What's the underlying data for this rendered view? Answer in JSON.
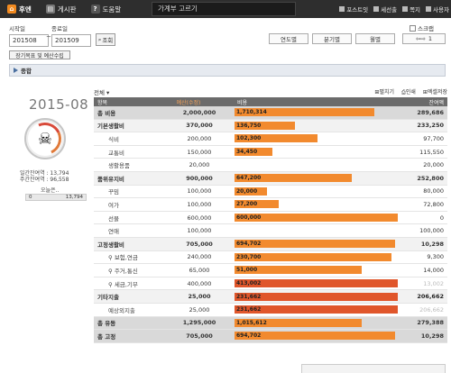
{
  "topnav": [
    {
      "label": "후엔",
      "icon": "home-icon"
    },
    {
      "label": "게시판",
      "icon": "board-icon"
    },
    {
      "label": "도움말",
      "icon": "help-icon"
    }
  ],
  "page_title": "가계부 고르기",
  "topright": {
    "post": "포스트잇",
    "receipt": "세선출",
    "note": "쪽지",
    "user": "사용자"
  },
  "filters": {
    "start_label": "시작일",
    "end_label": "종료일",
    "start_value": "201508",
    "end_value": "201509",
    "tilde": "~",
    "search_label": "조회",
    "checkbox_label": "스크랩",
    "periods": [
      "연도별",
      "분기별",
      "월별"
    ],
    "pager_label": "1",
    "goal_button": "장기목표 및 예산수립"
  },
  "section_title": "종합",
  "left": {
    "month": "2015-08",
    "daily_avg": "일간잔여역 : 13,794",
    "weekly_avg": "주간잔여역 : 96,558",
    "today_label": "오늘은..",
    "today_left": "0",
    "today_right": "13,794"
  },
  "table": {
    "filter_label": "전체",
    "tools": [
      "펼치기",
      "인쇄",
      "엑셀저장"
    ],
    "headers": {
      "item": "항목",
      "budget": "예산(수정)",
      "spent": "비용",
      "remain": "잔여액"
    },
    "rows": [
      {
        "label": "총 비용",
        "budget": "2,000,000",
        "spent": "1,710,314",
        "pct": 85.5,
        "remain": "289,686",
        "kind": "total"
      },
      {
        "label": "기본생활비",
        "budget": "370,000",
        "spent": "136,750",
        "pct": 37,
        "remain": "233,250",
        "kind": "group"
      },
      {
        "label": "식비",
        "budget": "200,000",
        "spent": "102,300",
        "pct": 51,
        "remain": "97,700",
        "kind": "sub"
      },
      {
        "label": "교통비",
        "budget": "150,000",
        "spent": "34,450",
        "pct": 23,
        "remain": "115,550",
        "kind": "sub"
      },
      {
        "label": "생활용품",
        "budget": "20,000",
        "spent": "",
        "pct": 0,
        "remain": "20,000",
        "kind": "sub"
      },
      {
        "label": "품위유지비",
        "budget": "900,000",
        "spent": "647,200",
        "pct": 72,
        "remain": "252,800",
        "kind": "group"
      },
      {
        "label": "꾸밈",
        "budget": "100,000",
        "spent": "20,000",
        "pct": 20,
        "remain": "80,000",
        "kind": "sub"
      },
      {
        "label": "여가",
        "budget": "100,000",
        "spent": "27,200",
        "pct": 27,
        "remain": "72,800",
        "kind": "sub"
      },
      {
        "label": "선물",
        "budget": "600,000",
        "spent": "600,000",
        "pct": 100,
        "remain": "0",
        "kind": "sub"
      },
      {
        "label": "연애",
        "budget": "100,000",
        "spent": "",
        "pct": 0,
        "remain": "100,000",
        "kind": "sub"
      },
      {
        "label": "고정생활비",
        "budget": "705,000",
        "spent": "694,702",
        "pct": 98.5,
        "remain": "10,298",
        "kind": "group"
      },
      {
        "label": "보험,연금",
        "budget": "240,000",
        "spent": "230,700",
        "pct": 96,
        "remain": "9,300",
        "kind": "sub",
        "pin": true
      },
      {
        "label": "주거,통신",
        "budget": "65,000",
        "spent": "51,000",
        "pct": 78,
        "remain": "14,000",
        "kind": "sub",
        "pin": true
      },
      {
        "label": "세금,기부",
        "budget": "400,000",
        "spent": "413,002",
        "pct": 100,
        "remain": "13,002",
        "kind": "sub",
        "pin": true,
        "over": true
      },
      {
        "label": "기타지출",
        "budget": "25,000",
        "spent": "231,662",
        "pct": 100,
        "remain": "206,662",
        "kind": "group",
        "over": true
      },
      {
        "label": "예상외지출",
        "budget": "25,000",
        "spent": "231,662",
        "pct": 100,
        "remain": "206,662",
        "kind": "sub",
        "over": true
      },
      {
        "label": "총 유동",
        "budget": "1,295,000",
        "spent": "1,015,612",
        "pct": 78,
        "remain": "279,388",
        "kind": "total"
      },
      {
        "label": "총 고정",
        "budget": "705,000",
        "spent": "694,702",
        "pct": 98.5,
        "remain": "10,298",
        "kind": "total"
      }
    ]
  },
  "colors": {
    "bar": "#f28a2e",
    "over": "#e0562b",
    "header": "#6b6b6b"
  }
}
